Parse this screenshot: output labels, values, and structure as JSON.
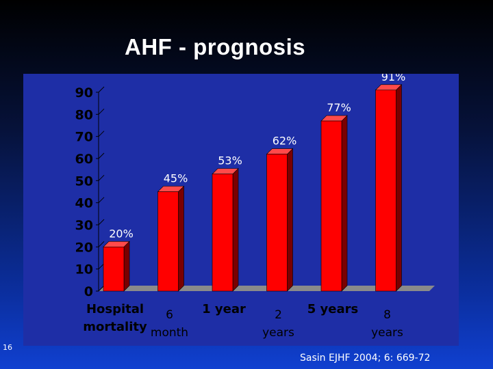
{
  "slide": {
    "title": "AHF - prognosis",
    "page_number": "16",
    "source": "Sasin EJHF 2004; 6: 669-72"
  },
  "colors": {
    "bar_front": "#ff0000",
    "bar_side": "#7a0000",
    "bar_top": "#ff4a4a",
    "panel": "#1e2ea6",
    "floor": "#8a8a8a",
    "text": "#000000",
    "value_label": "#ffffff"
  },
  "chart_data": {
    "type": "bar",
    "title": "",
    "xlabel": "",
    "ylabel": "",
    "ylim": [
      0,
      90
    ],
    "yticks": [
      0,
      10,
      20,
      30,
      40,
      50,
      60,
      70,
      80,
      90
    ],
    "grid": false,
    "style": "3d",
    "categories": [
      {
        "lines": [
          "Hospital",
          "mortality"
        ],
        "row": "upper",
        "bold": true
      },
      {
        "lines": [
          "6",
          "month"
        ],
        "row": "lower",
        "bold": false
      },
      {
        "lines": [
          "1 year"
        ],
        "row": "upper",
        "bold": true
      },
      {
        "lines": [
          "2",
          "years"
        ],
        "row": "lower",
        "bold": false
      },
      {
        "lines": [
          "5 years"
        ],
        "row": "upper",
        "bold": true
      },
      {
        "lines": [
          "8",
          "years"
        ],
        "row": "lower",
        "bold": false
      }
    ],
    "values": [
      20,
      45,
      53,
      62,
      77,
      91
    ],
    "value_labels": [
      "20%",
      "45%",
      "53%",
      "62%",
      "77%",
      "91%"
    ]
  }
}
